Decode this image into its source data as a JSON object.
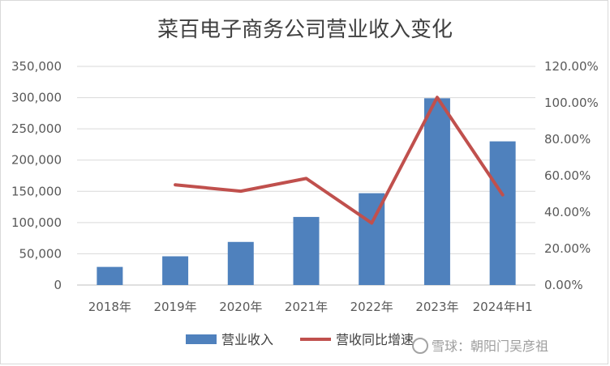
{
  "chart_data": {
    "type": "bar",
    "title": "菜百电子商务公司营业收入变化",
    "categories": [
      "2018年",
      "2019年",
      "2020年",
      "2021年",
      "2022年",
      "2023年",
      "2024年H1"
    ],
    "series": [
      {
        "name": "营业收入",
        "type": "bar",
        "axis": "left",
        "color": "#4f81bd",
        "values": [
          29000,
          46000,
          69000,
          109000,
          147000,
          299000,
          230000
        ]
      },
      {
        "name": "营收同比增速",
        "type": "line",
        "axis": "right",
        "color": "#c0504d",
        "values": [
          null,
          55.0,
          51.5,
          58.5,
          34.0,
          103.0,
          49.5
        ]
      }
    ],
    "y_left": {
      "ylim": [
        0,
        350000
      ],
      "ticks": [
        "0",
        "50,000",
        "100,000",
        "150,000",
        "200,000",
        "250,000",
        "300,000",
        "350,000"
      ]
    },
    "y_right": {
      "ylim": [
        0,
        120
      ],
      "ticks": [
        "0.00%",
        "20.00%",
        "40.00%",
        "60.00%",
        "80.00%",
        "100.00%",
        "120.00%"
      ]
    },
    "grid": true,
    "legend": "bottom"
  },
  "watermark": {
    "text": "雪球：朝阳门吴彦祖"
  }
}
